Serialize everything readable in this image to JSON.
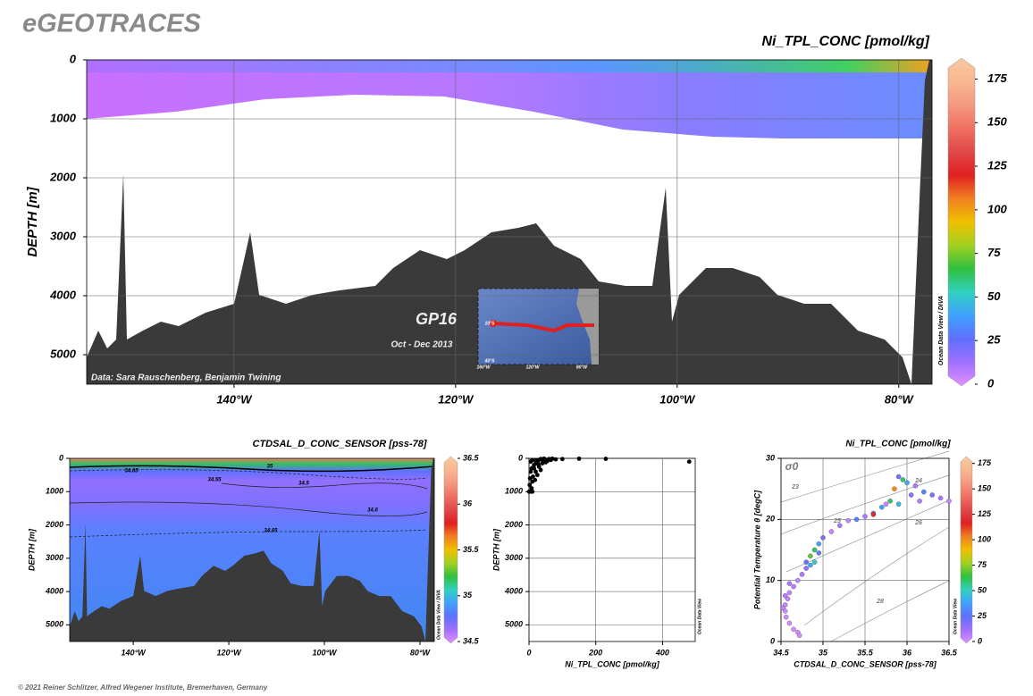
{
  "header": {
    "title": "eGEOTRACES"
  },
  "footer": "© 2021 Reiner Schlitzer, Alfred Wegener Institute, Bremerhaven, Germany",
  "colormap": [
    "#e090ff",
    "#a070ff",
    "#6070ff",
    "#40a0ff",
    "#30d0c0",
    "#30c040",
    "#a0d020",
    "#f0c000",
    "#f08020",
    "#e02020",
    "#e04848",
    "#f07060",
    "#f59880",
    "#f8b890",
    "#fac8a0"
  ],
  "chart_data": [
    {
      "type": "section",
      "title": "Ni_TPL_CONC [pmol/kg]",
      "ylabel": "DEPTH [m]",
      "xlim": [
        -153.3,
        -77
      ],
      "xticks": [
        {
          "value": -140,
          "label": "140°W"
        },
        {
          "value": -120,
          "label": "120°W"
        },
        {
          "value": -100,
          "label": "100°W"
        },
        {
          "value": -80,
          "label": "80°W"
        }
      ],
      "ylim": [
        0,
        5500
      ],
      "yticks": [
        0,
        1000,
        2000,
        3000,
        4000,
        5000
      ],
      "y_reversed": true,
      "grid": true,
      "colorbar": {
        "lim": [
          0,
          186
        ],
        "ticks": [
          0,
          25,
          50,
          75,
          100,
          125,
          150,
          175
        ]
      },
      "side_label": "Ocean Data View / DIVA",
      "annotations": [
        "Data: Sara Rauschenberg, Benjamin Twining",
        "GP16",
        "Oct - Dec 2013"
      ],
      "inset_labels": [
        "10°S",
        "40°S",
        "160°W",
        "120°W",
        "80°W"
      ]
    },
    {
      "type": "section",
      "title": "CTDSAL_D_CONC_SENSOR [pss-78]",
      "ylabel": "DEPTH [m]",
      "xlim": [
        -153.3,
        -77
      ],
      "xticks": [
        {
          "value": -140,
          "label": "140°W"
        },
        {
          "value": -120,
          "label": "120°W"
        },
        {
          "value": -100,
          "label": "100°W"
        },
        {
          "value": -80,
          "label": "80°W"
        }
      ],
      "ylim": [
        0,
        5500
      ],
      "yticks": [
        0,
        1000,
        2000,
        3000,
        4000,
        5000
      ],
      "y_reversed": true,
      "grid": false,
      "colorbar": {
        "lim": [
          34.5,
          36.5
        ],
        "ticks": [
          34.5,
          35,
          35.5,
          36,
          36.5
        ]
      },
      "side_label": "Ocean Data View / DIVA",
      "contour_labels": [
        "34.65",
        "35",
        "34.55",
        "34.5",
        "34.6",
        "34.65"
      ]
    },
    {
      "type": "scatter",
      "xlabel": "Ni_TPL_CONC [pmol/kg]",
      "ylabel": "DEPTH [m]",
      "xlim": [
        0,
        498
      ],
      "xticks": [
        0,
        200,
        400
      ],
      "ylim": [
        0,
        5500
      ],
      "yticks": [
        0,
        1000,
        2000,
        3000,
        4000,
        5000
      ],
      "y_reversed": true,
      "grid": true,
      "color": "#000000",
      "side_label": "Ocean Data View",
      "x": [
        0,
        5,
        10,
        2,
        3,
        5,
        8,
        15,
        20,
        25,
        30,
        35,
        40,
        50,
        60,
        45,
        70,
        10,
        5,
        15,
        20,
        30,
        25,
        10,
        55,
        40,
        20,
        65,
        80,
        100,
        150,
        230,
        480,
        35,
        12,
        18,
        28,
        50,
        42,
        8
      ],
      "y": [
        1000,
        1000,
        1000,
        800,
        600,
        400,
        300,
        200,
        150,
        100,
        50,
        20,
        30,
        40,
        20,
        10,
        10,
        50,
        100,
        300,
        400,
        250,
        500,
        700,
        80,
        150,
        60,
        50,
        30,
        20,
        10,
        15,
        100,
        350,
        550,
        650,
        180,
        120,
        60,
        900
      ]
    },
    {
      "type": "scatter",
      "title": "Ni_TPL_CONC [pmol/kg]",
      "xlabel": "CTDSAL_D_CONC_SENSOR [pss-78]",
      "ylabel": "Potential Temperature θ [degC]",
      "xlim": [
        34.5,
        36.5
      ],
      "xticks": [
        34.5,
        35,
        35.5,
        36,
        36.5
      ],
      "ylim": [
        0,
        30
      ],
      "yticks": [
        0,
        10,
        20,
        30
      ],
      "y_reversed": false,
      "grid": true,
      "colorbar": {
        "lim": [
          0,
          180
        ],
        "ticks": [
          0,
          25,
          50,
          75,
          100,
          125,
          150,
          175
        ]
      },
      "side_label": "Ocean Data View",
      "isopycnal_labels": [
        "σ0",
        "23",
        "24",
        "25",
        "26",
        "28"
      ],
      "x": [
        35.9,
        35.95,
        36.0,
        36.1,
        35.85,
        36.2,
        36.3,
        36.4,
        36.5,
        35.7,
        35.8,
        35.6,
        35.5,
        35.4,
        35.3,
        35.2,
        35.1,
        35.0,
        34.95,
        34.9,
        34.85,
        34.9,
        34.95,
        35.6,
        35.9,
        36.05,
        36.15,
        35.75,
        34.8,
        34.75,
        34.7,
        34.65,
        34.6,
        34.58,
        34.55,
        34.55,
        34.56,
        34.6,
        34.65,
        34.7,
        34.72,
        34.8,
        34.85,
        34.6,
        34.55,
        34.52
      ],
      "y": [
        27,
        26.5,
        26,
        25.5,
        25,
        24.5,
        24,
        23.5,
        23,
        22,
        23,
        21,
        20.5,
        20,
        19.8,
        19,
        18,
        17,
        16,
        15,
        14,
        13,
        14.5,
        20.8,
        22.5,
        24,
        23,
        22.5,
        12,
        11,
        10,
        9,
        8,
        7,
        6,
        5,
        4,
        3,
        2,
        1.5,
        1,
        13,
        12.5,
        9.5,
        7.5,
        5.5
      ],
      "z": [
        20,
        60,
        40,
        10,
        100,
        30,
        20,
        10,
        5,
        40,
        60,
        15,
        10,
        30,
        5,
        10,
        5,
        20,
        40,
        60,
        70,
        50,
        30,
        120,
        45,
        15,
        8,
        5,
        15,
        10,
        5,
        8,
        5,
        5,
        5,
        3,
        3,
        2,
        2,
        2,
        2,
        25,
        40,
        10,
        8,
        6
      ]
    }
  ]
}
